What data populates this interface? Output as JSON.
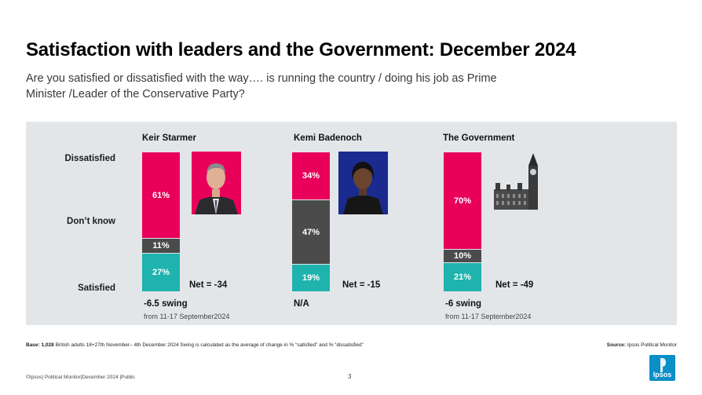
{
  "title": "Satisfaction with leaders and the Government: December 2024",
  "subtitle": "Are you satisfied or dissatisfied with the way…. is running the country / doing his job as Prime Minister /Leader of the Conservative Party?",
  "row_labels": {
    "dissatisfied": "Dissatisfied",
    "dont_know": "Don’t know",
    "satisfied": "Satisfied"
  },
  "colors": {
    "dissatisfied": "#e8005a",
    "dont_know": "#4b4b4b",
    "satisfied": "#1fb3ad",
    "panel": "#e3e6e9",
    "ipsos_blue": "#0a8fc6"
  },
  "chart_data": {
    "type": "bar",
    "stacked": true,
    "orientation": "vertical",
    "categories": [
      "Keir Starmer",
      "Kemi Badenoch",
      "The Government"
    ],
    "series": [
      {
        "name": "Dissatisfied",
        "values": [
          61,
          34,
          70
        ]
      },
      {
        "name": "Don’t know",
        "values": [
          11,
          47,
          10
        ]
      },
      {
        "name": "Satisfied",
        "values": [
          27,
          19,
          21
        ]
      }
    ],
    "unit": "%",
    "ylim": [
      0,
      100
    ],
    "net": [
      "Net = -34",
      "Net = -15",
      "Net = -49"
    ],
    "swing": [
      "-6.5 swing",
      "N/A",
      "-6 swing"
    ],
    "swing_sub": [
      "from 11-17 September2024",
      "",
      "from 11-17 September2024"
    ],
    "photos": [
      "starmer-photo",
      "badenoch-photo",
      "government-photo"
    ]
  },
  "footnote": {
    "base_label": "Base: 1,028",
    "text": " British adults 18+27th November– 4th December 2024 Swing is calculated as the average of change in % “satisfied” and % “dissatisfied”"
  },
  "source": {
    "label": "Source:",
    "text": " Ipsos Political Monitor"
  },
  "footer": "©Ipsos| Political Monitor|December 2024 |Public",
  "page_number": "3",
  "logo_text": "Ipsos"
}
